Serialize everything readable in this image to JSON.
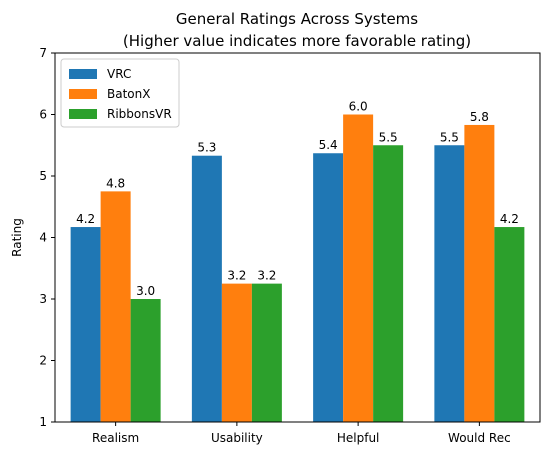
{
  "chart_data": {
    "type": "bar",
    "title_lines": [
      "General Ratings Across Systems",
      "(Higher value indicates more favorable rating)"
    ],
    "xlabel": "",
    "ylabel": "Rating",
    "ylim": [
      1,
      7
    ],
    "yticks": [
      "1",
      "2",
      "3",
      "4",
      "5",
      "6",
      "7"
    ],
    "categories": [
      "Realism",
      "Usability",
      "Helpful",
      "Would Rec"
    ],
    "series": [
      {
        "name": "VRC",
        "color": "#1f77b4",
        "values": [
          4.17,
          5.33,
          5.37,
          5.5
        ],
        "labels": [
          "4.2",
          "5.3",
          "5.4",
          "5.5"
        ]
      },
      {
        "name": "BatonX",
        "color": "#ff7f0e",
        "values": [
          4.75,
          3.25,
          6.0,
          5.83
        ],
        "labels": [
          "4.8",
          "3.2",
          "6.0",
          "5.8"
        ]
      },
      {
        "name": "RibbonsVR",
        "color": "#2ca02c",
        "values": [
          3.0,
          3.25,
          5.5,
          4.17
        ],
        "labels": [
          "3.0",
          "3.2",
          "5.5",
          "4.2"
        ]
      }
    ],
    "legend_position": "top-left",
    "grid": false
  }
}
